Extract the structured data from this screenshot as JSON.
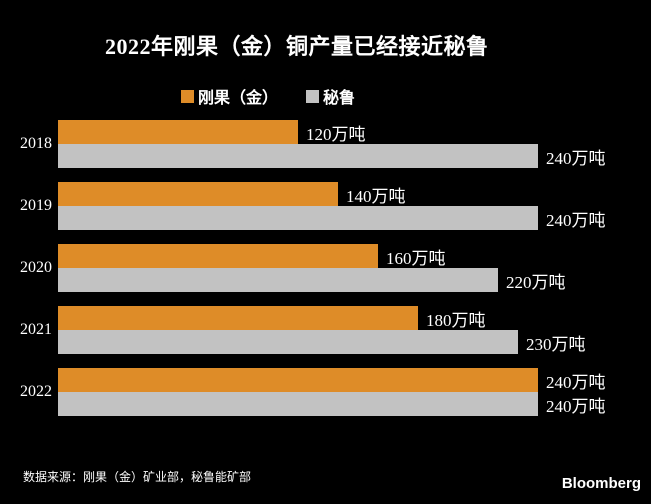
{
  "title": "2022年刚果（金）铜产量已经接近秘鲁",
  "legend": {
    "items": [
      {
        "label": "刚果（金）",
        "color": "#DE8C28"
      },
      {
        "label": "秘鲁",
        "color": "#C2C2C2"
      }
    ]
  },
  "chart_data": {
    "type": "bar",
    "orientation": "horizontal",
    "title": "2022年刚果（金）铜产量已经接近秘鲁",
    "categories": [
      "2018",
      "2019",
      "2020",
      "2021",
      "2022"
    ],
    "series": [
      {
        "name": "刚果（金）",
        "color": "#DE8C28",
        "values": [
          120,
          140,
          160,
          180,
          240
        ],
        "labels": [
          "120万吨",
          "140万吨",
          "160万吨",
          "180万吨",
          "240万吨"
        ]
      },
      {
        "name": "秘鲁",
        "color": "#C2C2C2",
        "values": [
          240,
          240,
          220,
          230,
          240
        ],
        "labels": [
          "240万吨",
          "240万吨",
          "220万吨",
          "230万吨",
          "240万吨"
        ]
      }
    ],
    "unit": "万吨",
    "xlim": [
      0,
      240
    ],
    "grid": false,
    "legend_position": "top",
    "value_labels": "outside-end"
  },
  "source": "数据来源：刚果（金）矿业部，秘鲁能矿部",
  "brand": "Bloomberg",
  "colors": {
    "background": "#000000",
    "text": "#FFFFFF",
    "congo": "#DE8C28",
    "peru": "#C2C2C2"
  }
}
